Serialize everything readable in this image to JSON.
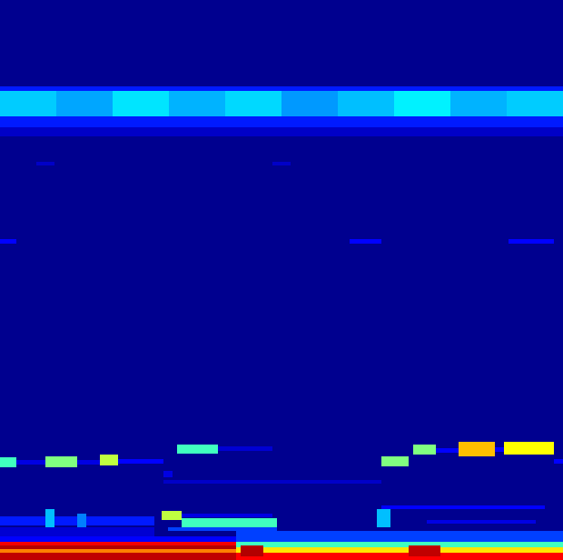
{
  "chart_data": {
    "type": "heatmap",
    "xlim": [
      0,
      620
    ],
    "ylim": [
      0,
      616
    ],
    "tick_labels": false,
    "value_range": [
      0,
      1
    ],
    "cells": [
      {
        "x1": 0,
        "x2": 620,
        "y1": 0,
        "y2": 616,
        "value": 0
      },
      {
        "x1": 0,
        "x2": 620,
        "y1": 466,
        "y2": 476,
        "value": 0.1
      },
      {
        "x1": 0,
        "x2": 620,
        "y1": 476,
        "y2": 488,
        "value": 0.22
      },
      {
        "x1": 0,
        "x2": 620,
        "y1": 516,
        "y2": 521,
        "value": 0.22
      },
      {
        "x1": 0,
        "x2": 62,
        "y1": 488,
        "y2": 516,
        "value": 0.36
      },
      {
        "x1": 62,
        "x2": 124,
        "y1": 488,
        "y2": 516,
        "value": 0.33
      },
      {
        "x1": 124,
        "x2": 186,
        "y1": 488,
        "y2": 516,
        "value": 0.38
      },
      {
        "x1": 186,
        "x2": 248,
        "y1": 488,
        "y2": 516,
        "value": 0.34
      },
      {
        "x1": 248,
        "x2": 310,
        "y1": 488,
        "y2": 516,
        "value": 0.37
      },
      {
        "x1": 310,
        "x2": 372,
        "y1": 488,
        "y2": 516,
        "value": 0.32
      },
      {
        "x1": 372,
        "x2": 434,
        "y1": 488,
        "y2": 516,
        "value": 0.35
      },
      {
        "x1": 434,
        "x2": 496,
        "y1": 488,
        "y2": 516,
        "value": 0.39
      },
      {
        "x1": 496,
        "x2": 558,
        "y1": 488,
        "y2": 516,
        "value": 0.34
      },
      {
        "x1": 558,
        "x2": 620,
        "y1": 488,
        "y2": 516,
        "value": 0.36
      },
      {
        "x1": 40,
        "x2": 60,
        "y1": 434,
        "y2": 438,
        "value": 0.1
      },
      {
        "x1": 300,
        "x2": 320,
        "y1": 434,
        "y2": 438,
        "value": 0.1
      },
      {
        "x1": 0,
        "x2": 18,
        "y1": 348,
        "y2": 353,
        "value": 0.2
      },
      {
        "x1": 385,
        "x2": 420,
        "y1": 348,
        "y2": 353,
        "value": 0.2
      },
      {
        "x1": 560,
        "x2": 610,
        "y1": 348,
        "y2": 353,
        "value": 0.2
      },
      {
        "x1": 18,
        "x2": 50,
        "y1": 105,
        "y2": 110,
        "value": 0.15
      },
      {
        "x1": 85,
        "x2": 110,
        "y1": 105,
        "y2": 110,
        "value": 0.15
      },
      {
        "x1": 130,
        "x2": 180,
        "y1": 106,
        "y2": 111,
        "value": 0.2
      },
      {
        "x1": 0,
        "x2": 18,
        "y1": 102,
        "y2": 113,
        "value": 0.45
      },
      {
        "x1": 50,
        "x2": 85,
        "y1": 102,
        "y2": 114,
        "value": 0.5
      },
      {
        "x1": 110,
        "x2": 130,
        "y1": 104,
        "y2": 116,
        "value": 0.55
      },
      {
        "x1": 195,
        "x2": 240,
        "y1": 117,
        "y2": 127,
        "value": 0.45
      },
      {
        "x1": 240,
        "x2": 300,
        "y1": 120,
        "y2": 125,
        "value": 0.12
      },
      {
        "x1": 420,
        "x2": 450,
        "y1": 103,
        "y2": 114,
        "value": 0.5
      },
      {
        "x1": 455,
        "x2": 480,
        "y1": 116,
        "y2": 127,
        "value": 0.5
      },
      {
        "x1": 480,
        "x2": 505,
        "y1": 118,
        "y2": 123,
        "value": 0.2
      },
      {
        "x1": 505,
        "x2": 545,
        "y1": 114,
        "y2": 130,
        "value": 0.65
      },
      {
        "x1": 545,
        "x2": 555,
        "y1": 119,
        "y2": 124,
        "value": 0.2
      },
      {
        "x1": 555,
        "x2": 610,
        "y1": 116,
        "y2": 130,
        "value": 0.6
      },
      {
        "x1": 610,
        "x2": 620,
        "y1": 106,
        "y2": 111,
        "value": 0.2
      },
      {
        "x1": 180,
        "x2": 190,
        "y1": 91,
        "y2": 98,
        "value": 0.15
      },
      {
        "x1": 180,
        "x2": 420,
        "y1": 84,
        "y2": 88,
        "value": 0.1
      },
      {
        "x1": 420,
        "x2": 600,
        "y1": 56,
        "y2": 60,
        "value": 0.2
      },
      {
        "x1": 470,
        "x2": 590,
        "y1": 40,
        "y2": 44,
        "value": 0.15
      },
      {
        "x1": 0,
        "x2": 170,
        "y1": 38,
        "y2": 48,
        "value": 0.22
      },
      {
        "x1": 0,
        "x2": 170,
        "y1": 26,
        "y2": 36,
        "value": 0.12
      },
      {
        "x1": 50,
        "x2": 60,
        "y1": 36,
        "y2": 56,
        "value": 0.35
      },
      {
        "x1": 85,
        "x2": 95,
        "y1": 36,
        "y2": 51,
        "value": 0.3
      },
      {
        "x1": 415,
        "x2": 430,
        "y1": 36,
        "y2": 56,
        "value": 0.35
      },
      {
        "x1": 190,
        "x2": 300,
        "y1": 47,
        "y2": 51,
        "value": 0.15
      },
      {
        "x1": 185,
        "x2": 305,
        "y1": 32,
        "y2": 36,
        "value": 0.25
      },
      {
        "x1": 200,
        "x2": 305,
        "y1": 36,
        "y2": 46,
        "value": 0.45
      },
      {
        "x1": 178,
        "x2": 200,
        "y1": 44,
        "y2": 54,
        "value": 0.55
      },
      {
        "x1": 260,
        "x2": 620,
        "y1": 20,
        "y2": 32,
        "value": 0.25
      },
      {
        "x1": 0,
        "x2": 260,
        "y1": 20,
        "y2": 26,
        "value": 0.2
      },
      {
        "x1": 0,
        "x2": 260,
        "y1": 16,
        "y2": 20,
        "value": 0.82
      },
      {
        "x1": 0,
        "x2": 260,
        "y1": 12,
        "y2": 16,
        "value": 0.92
      },
      {
        "x1": 0,
        "x2": 260,
        "y1": 8,
        "y2": 12,
        "value": 0.7
      },
      {
        "x1": 0,
        "x2": 260,
        "y1": 0,
        "y2": 8,
        "value": 0.9
      },
      {
        "x1": 260,
        "x2": 620,
        "y1": 14,
        "y2": 20,
        "value": 0.45
      },
      {
        "x1": 260,
        "x2": 620,
        "y1": 8,
        "y2": 14,
        "value": 0.62
      },
      {
        "x1": 260,
        "x2": 620,
        "y1": 0,
        "y2": 8,
        "value": 0.8
      },
      {
        "x1": 265,
        "x2": 290,
        "y1": 4,
        "y2": 16,
        "value": 0.92
      },
      {
        "x1": 450,
        "x2": 485,
        "y1": 4,
        "y2": 16,
        "value": 0.9
      }
    ]
  }
}
